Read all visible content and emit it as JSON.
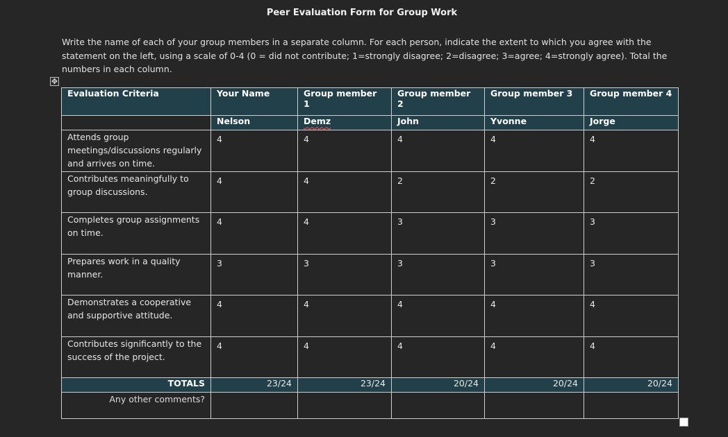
{
  "form": {
    "title": "Peer Evaluation Form for Group Work",
    "instructions": "Write the name of each of your group members in a separate column. For each person, indicate the extent to which you agree with the statement on the left, using a scale of 0-4 (0 = did not contribute;  1=strongly disagree; 2=disagree; 3=agree; 4=strongly agree). Total the numbers in each column."
  },
  "table": {
    "headers": [
      "Evaluation Criteria",
      "Your Name",
      "Group member 1",
      "Group member 2",
      "Group member 3",
      "Group member 4"
    ],
    "names": [
      "Nelson",
      "Demz",
      "John",
      "Yvonne",
      "Jorge"
    ],
    "rows": [
      {
        "criteria": "Attends group meetings/discussions regularly and arrives on time.",
        "scores": [
          "4",
          "4",
          "4",
          "4",
          "4"
        ]
      },
      {
        "criteria": "Contributes meaningfully to group discussions.",
        "scores": [
          "4",
          "4",
          "2",
          "2",
          "2"
        ]
      },
      {
        "criteria": "Completes group assignments on time.",
        "scores": [
          "4",
          "4",
          "3",
          "3",
          "3"
        ]
      },
      {
        "criteria": "Prepares work in a quality manner.",
        "scores": [
          "3",
          "3",
          "3",
          "3",
          "3"
        ]
      },
      {
        "criteria": "Demonstrates a cooperative and supportive attitude.",
        "scores": [
          "4",
          "4",
          "4",
          "4",
          "4"
        ]
      },
      {
        "criteria": "Contributes significantly to the success of the project.",
        "scores": [
          "4",
          "4",
          "4",
          "4",
          "4"
        ]
      }
    ],
    "totals_label": "TOTALS",
    "totals": [
      "23/24",
      "23/24",
      "20/24",
      "20/24",
      "20/24"
    ],
    "comments_label": "Any other comments?"
  },
  "icons": {
    "table_move": "move-arrows-icon",
    "table_resize": "resize-square-icon"
  }
}
